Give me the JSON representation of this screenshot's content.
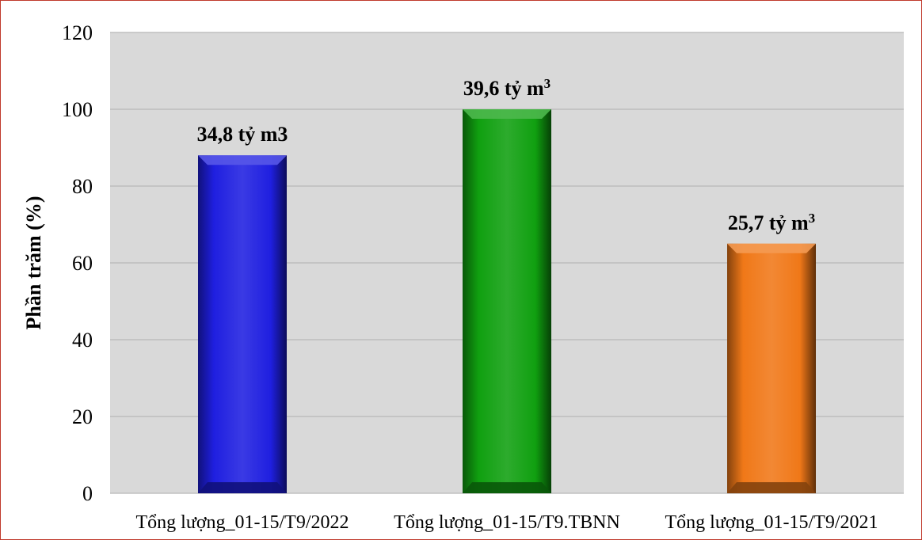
{
  "chart_data": {
    "type": "bar",
    "title": "",
    "xlabel": "",
    "ylabel": "Phần trăm (%)",
    "ylim": [
      0,
      120
    ],
    "yticks": [
      0,
      20,
      40,
      60,
      80,
      100,
      120
    ],
    "grid": true,
    "legend": "none",
    "categories": [
      "Tổng lượng_01-15/T9/2022",
      "Tổng lượng_01-15/T9.TBNN",
      "Tổng lượng_01-15/T9/2021"
    ],
    "values": [
      88,
      100,
      65
    ],
    "data_labels": [
      {
        "text": "34,8 tỷ m3",
        "superscript": ""
      },
      {
        "text": "39,6 tỷ m",
        "superscript": "3"
      },
      {
        "text": "25,7 tỷ m",
        "superscript": "3"
      }
    ],
    "colors": [
      "#1f1fe0",
      "#10a010",
      "#f07818"
    ],
    "plot_background": "#d9d9d9",
    "gridline_color": "#b8b8b8"
  }
}
